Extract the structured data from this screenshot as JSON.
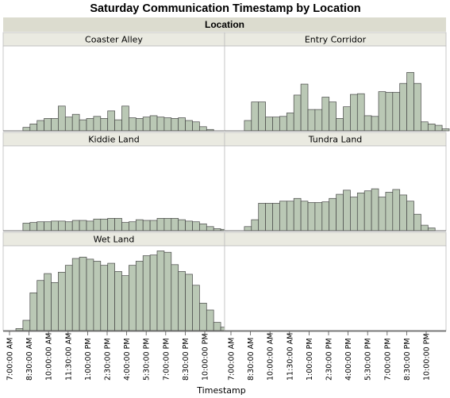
{
  "chart_data": {
    "type": "bar",
    "title": "Saturday Communication Timestamp by Location",
    "group_header": "Location",
    "xlabel": "Timestamp",
    "x_tick_labels": [
      "7:00:00 AM",
      "8:30:00 AM",
      "10:00:00 AM",
      "11:30:00 AM",
      "1:00:00 PM",
      "2:30:00 PM",
      "4:00:00 PM",
      "5:30:00 PM",
      "7:00:00 PM",
      "8:30:00 PM",
      "10:00:00 PM"
    ],
    "bin_width_minutes": 30,
    "x_range": [
      "6:30 AM",
      "11:30 PM"
    ],
    "panels": [
      {
        "name": "Coaster Alley",
        "values": [
          0,
          0.5,
          1.0,
          1.5,
          1.8,
          1.8,
          3.6,
          2.0,
          2.4,
          1.6,
          1.8,
          2.1,
          1.8,
          2.9,
          1.6,
          3.6,
          1.9,
          1.8,
          2.0,
          2.2,
          2.0,
          1.9,
          1.8,
          1.9,
          1.5,
          1.3,
          0.6,
          0.2
        ]
      },
      {
        "name": "Entry Corridor",
        "values": [
          0,
          1.5,
          4.2,
          4.2,
          2.0,
          2.0,
          2.1,
          2.6,
          5.2,
          6.8,
          3.1,
          3.1,
          4.9,
          4.2,
          1.8,
          3.5,
          5.3,
          5.4,
          2.2,
          2.1,
          5.7,
          5.6,
          5.6,
          6.9,
          8.5,
          6.9,
          1.3,
          1.0,
          0.8,
          0.3
        ]
      },
      {
        "name": "Kiddie Land",
        "values": [
          0,
          1.1,
          1.2,
          1.3,
          1.3,
          1.4,
          1.4,
          1.3,
          1.5,
          1.5,
          1.4,
          1.7,
          1.7,
          1.8,
          1.8,
          1.2,
          1.3,
          1.6,
          1.5,
          1.5,
          1.8,
          1.8,
          1.8,
          1.6,
          1.4,
          1.3,
          1.0,
          0.6,
          0.3,
          0.2
        ]
      },
      {
        "name": "Tundra Land",
        "values": [
          0,
          0.6,
          1.6,
          4.0,
          4.0,
          4.0,
          4.3,
          4.3,
          4.7,
          4.3,
          4.1,
          4.1,
          4.2,
          4.7,
          5.3,
          5.9,
          4.9,
          5.5,
          5.8,
          6.1,
          4.9,
          5.6,
          6.0,
          5.2,
          4.3,
          2.4,
          0.8,
          0.4
        ]
      },
      {
        "name": "Wet Land",
        "values": [
          0.3,
          1.5,
          5.5,
          7.3,
          8.3,
          7.0,
          8.5,
          9.5,
          10.5,
          10.7,
          10.4,
          10.1,
          9.5,
          9.8,
          8.6,
          8.0,
          9.5,
          10.1,
          10.9,
          11.0,
          11.6,
          11.4,
          9.6,
          8.6,
          8.2,
          6.6,
          4.0,
          3.0,
          1.2,
          0.5
        ]
      },
      {
        "name": "",
        "values": []
      }
    ],
    "y_max": 12,
    "colors": {
      "bar_fill": "#bac8b5",
      "bar_stroke": "#474747",
      "strip_fill": "#eaeae1",
      "header_fill": "#dcdccf",
      "frame": "#bdbdbd",
      "text": "#000000"
    },
    "grid": false,
    "legend": "none"
  }
}
